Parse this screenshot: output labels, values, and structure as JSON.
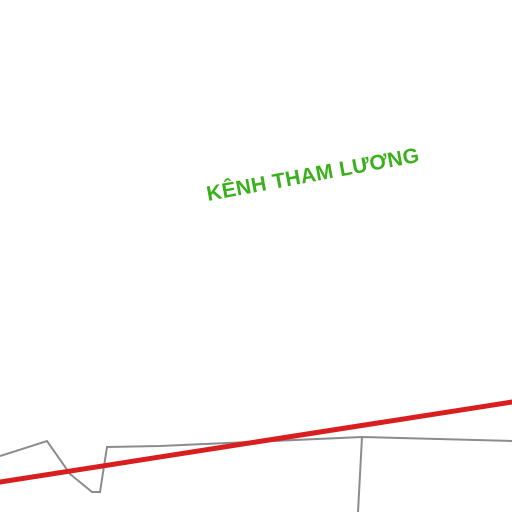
{
  "map": {
    "labels": {
      "canal": "KÊNH THAM LƯƠNG"
    },
    "colors": {
      "background": "#ffffff",
      "canal_label": "#3cb01c",
      "main_route": "#d81e1e",
      "boundary_line": "#8c8c8c"
    }
  }
}
